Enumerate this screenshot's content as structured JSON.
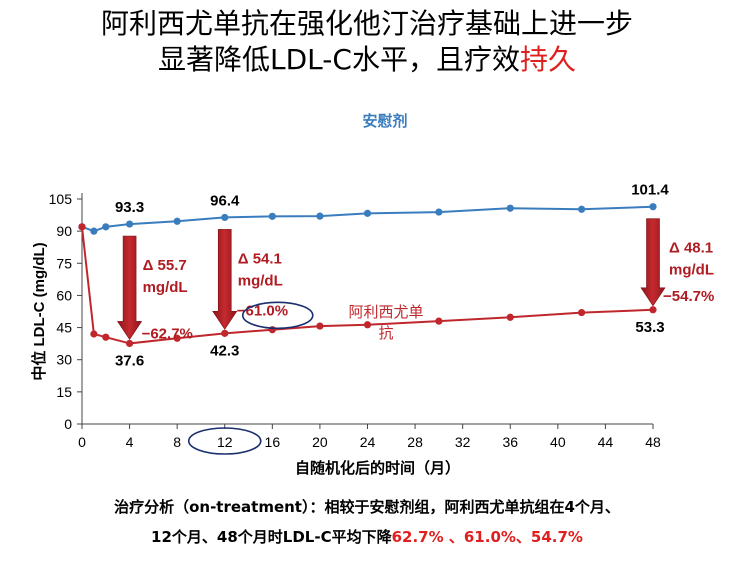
{
  "title": {
    "line1": "阿利西尤单抗在强化他汀治疗基础上进一步",
    "line2_main": "显著降低LDL-C水平，且疗效",
    "line2_highlight": "持久"
  },
  "colors": {
    "placebo": "#3a7dbf",
    "alirocumab": "#c0272d",
    "arrow": "#b01c22",
    "highlight": "#e02020",
    "ellipse": "#1a2f6e"
  },
  "chart_data": {
    "type": "line",
    "xlabel": "自随机化后的时间（月）",
    "ylabel": "中位 LDL-C (mg/dL)",
    "xlim": [
      0,
      48
    ],
    "ylim": [
      0,
      105
    ],
    "x_ticks": [
      0,
      4,
      8,
      12,
      16,
      20,
      24,
      28,
      32,
      36,
      40,
      44,
      48
    ],
    "y_ticks": [
      0,
      15,
      30,
      45,
      60,
      75,
      90,
      105
    ],
    "series": [
      {
        "name": "安慰剂",
        "color": "#3a7dbf",
        "x": [
          0,
          1,
          2,
          4,
          8,
          12,
          16,
          20,
          24,
          30,
          36,
          42,
          48
        ],
        "y": [
          92,
          90,
          92,
          93.3,
          94.6,
          96.4,
          96.9,
          97,
          98.3,
          98.9,
          100.7,
          100.2,
          101.4
        ]
      },
      {
        "name": "阿利西尤单抗",
        "name_line1": "阿利西尤单",
        "name_line2": "抗",
        "color": "#c0272d",
        "x": [
          0,
          1,
          2,
          4,
          8,
          12,
          16,
          20,
          24,
          30,
          36,
          42,
          48
        ],
        "y": [
          92,
          42,
          40.5,
          37.6,
          40,
          42.3,
          44,
          45.7,
          46.3,
          48,
          49.8,
          52,
          53.3
        ]
      }
    ],
    "point_labels": [
      {
        "x": 4,
        "y": 93.3,
        "text": "93.3",
        "series": 0
      },
      {
        "x": 12,
        "y": 96.4,
        "text": "96.4",
        "series": 0
      },
      {
        "x": 48,
        "y": 101.4,
        "text": "101.4",
        "series": 0
      },
      {
        "x": 4,
        "y": 37.6,
        "text": "37.6",
        "series": 1
      },
      {
        "x": 12,
        "y": 42.3,
        "text": "42.3",
        "series": 1
      },
      {
        "x": 48,
        "y": 53.3,
        "text": "53.3",
        "series": 1
      }
    ],
    "deltas": [
      {
        "x": 4,
        "line1": "Δ 55.7",
        "line2": "mg/dL",
        "pct": "−62.7%"
      },
      {
        "x": 12,
        "line1": "Δ 54.1",
        "line2": "mg/dL",
        "pct": "−61.0%"
      },
      {
        "x": 48,
        "line1": "Δ 48.1",
        "line2": "mg/dL",
        "pct": "−54.7%"
      }
    ]
  },
  "footer": {
    "line1": "治疗分析（on-treatment）：相较于安慰剂组，阿利西尤单抗组在4个月、",
    "line2_main": "12个月、48个月时LDL-C平均下降",
    "line2_highlight": "62.7% 、61.0%、54.7%"
  }
}
